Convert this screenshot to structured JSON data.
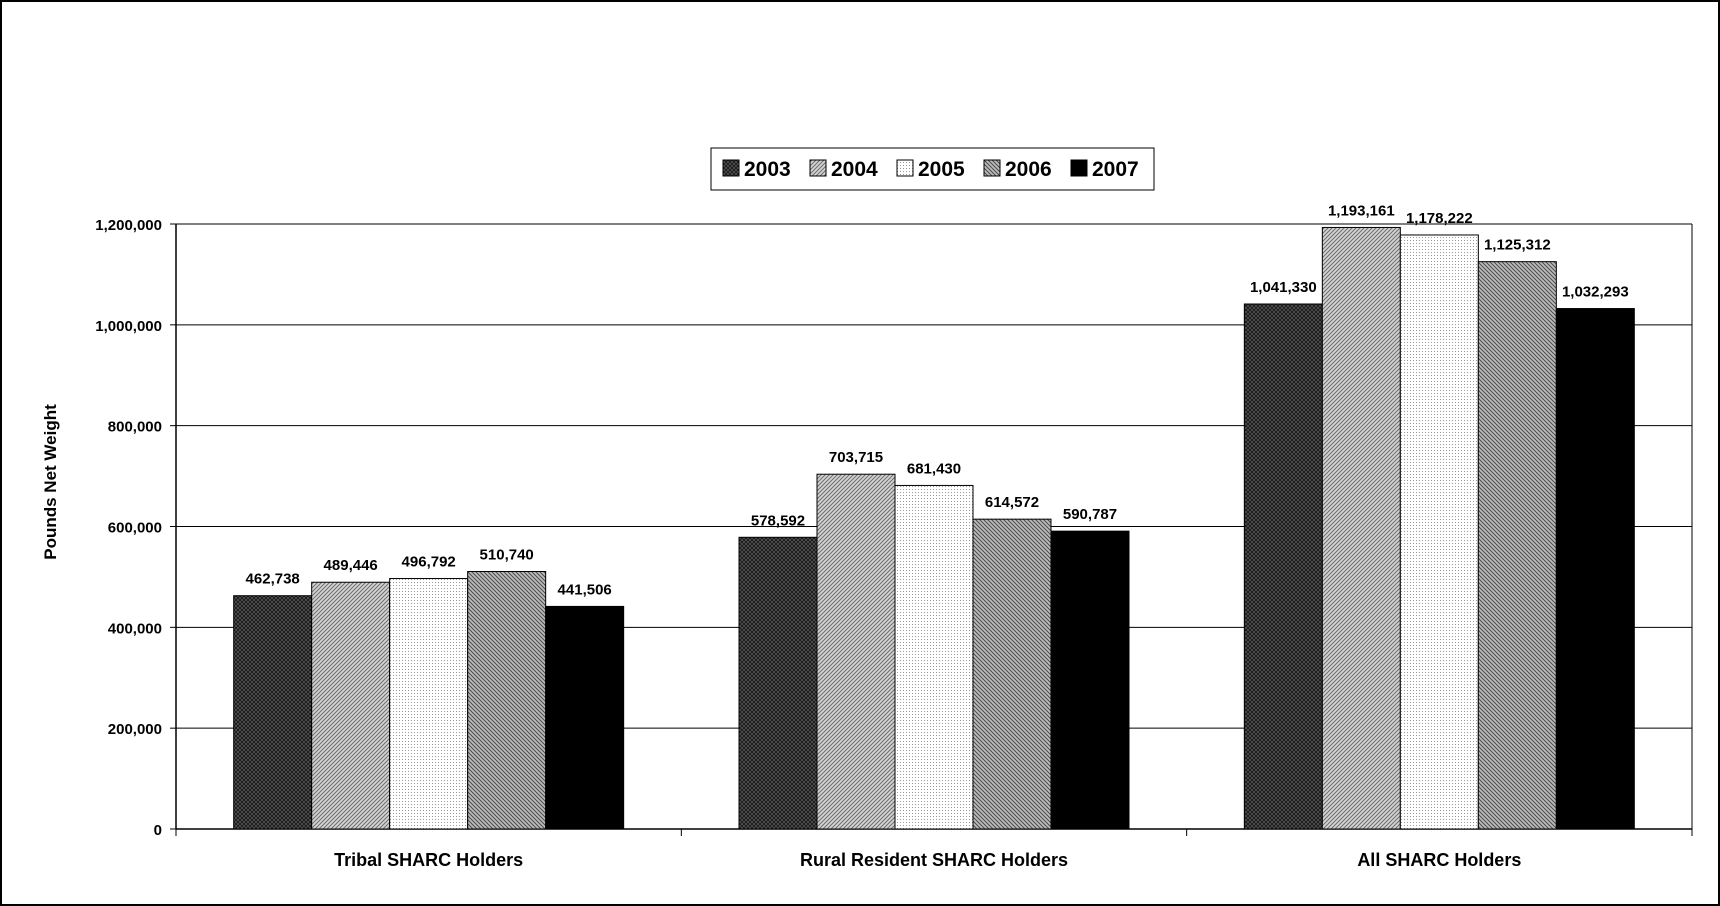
{
  "chart_data": {
    "type": "bar",
    "title": "",
    "xlabel": "",
    "ylabel": "Pounds Net Weight",
    "ylim": [
      0,
      1200000
    ],
    "yticks": [
      0,
      200000,
      400000,
      600000,
      800000,
      1000000,
      1200000
    ],
    "ytick_labels": [
      "0",
      "200,000",
      "400,000",
      "600,000",
      "800,000",
      "1,000,000",
      "1,200,000"
    ],
    "grid": true,
    "legend_position": "top-center",
    "categories": [
      "Tribal SHARC Holders",
      "Rural Resident SHARC Holders",
      "All SHARC Holders"
    ],
    "series": [
      {
        "name": "2003",
        "values": [
          462738,
          578592,
          1041330
        ],
        "labels": [
          "462,738",
          "578,592",
          "1,041,330"
        ],
        "color": "#6a6a6a",
        "pattern": "crosshatch-dark"
      },
      {
        "name": "2004",
        "values": [
          489446,
          703715,
          1193161
        ],
        "labels": [
          "489,446",
          "703,715",
          "1,193,161"
        ],
        "color": "#b4b4b4",
        "pattern": "diagonal-light"
      },
      {
        "name": "2005",
        "values": [
          496792,
          681430,
          1178222
        ],
        "labels": [
          "496,792",
          "681,430",
          "1,178,222"
        ],
        "color": "#ececec",
        "pattern": "dots-light"
      },
      {
        "name": "2006",
        "values": [
          510740,
          614572,
          1125312
        ],
        "labels": [
          "510,740",
          "614,572",
          "1,125,312"
        ],
        "color": "#a0a0a0",
        "pattern": "diagonal-medium"
      },
      {
        "name": "2007",
        "values": [
          441506,
          590787,
          1032293
        ],
        "labels": [
          "441,506",
          "590,787",
          "1,032,293"
        ],
        "color": "#000000",
        "pattern": "solid"
      }
    ]
  }
}
